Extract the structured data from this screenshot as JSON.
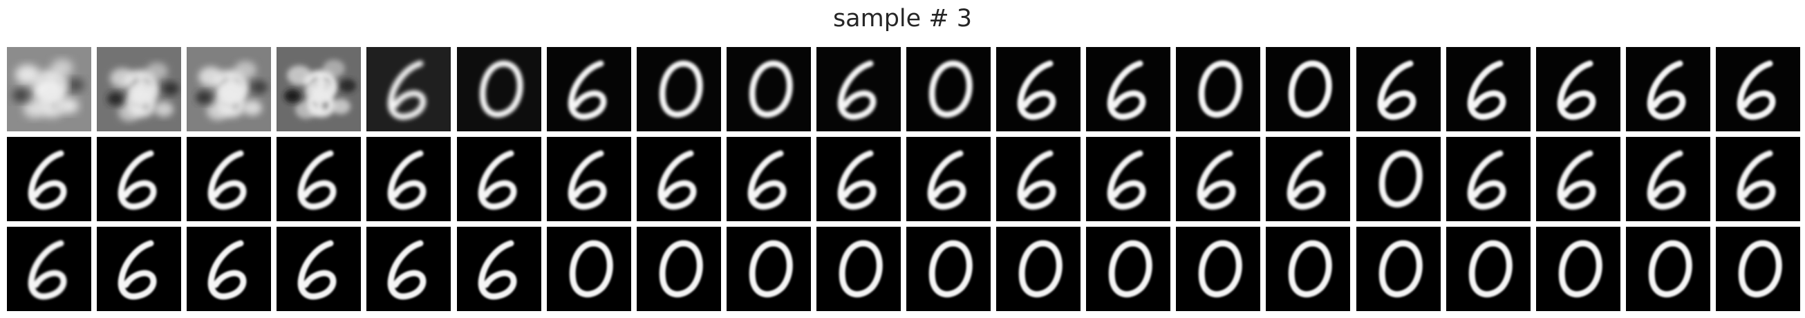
{
  "title": "sample # 3",
  "grid": {
    "rows": 3,
    "cols": 20,
    "rows_digits": [
      [
        "blob",
        "blob",
        "blob",
        "blob",
        "six",
        "zero",
        "six",
        "zero",
        "zero",
        "six",
        "zero",
        "six",
        "six",
        "zero",
        "zero",
        "six",
        "six",
        "six",
        "six",
        "six"
      ],
      [
        "six",
        "six",
        "six",
        "six",
        "six",
        "six",
        "six",
        "six",
        "six",
        "six",
        "six",
        "six",
        "six",
        "six",
        "six",
        "zero",
        "six",
        "six",
        "six",
        "six"
      ],
      [
        "six",
        "six",
        "six",
        "six",
        "six",
        "six",
        "zero",
        "zero",
        "zero",
        "zero",
        "zero",
        "zero",
        "zero",
        "zero",
        "zero",
        "zero",
        "zero",
        "zero",
        "zero",
        "zero"
      ]
    ],
    "row0_background_gray": [
      0.55,
      0.45,
      0.5,
      0.42,
      0.12,
      0.05,
      0.02,
      0.02,
      0.02,
      0.02,
      0.01,
      0.01,
      0.01,
      0.01,
      0.01,
      0.01,
      0.01,
      0.01,
      0.01,
      0.01
    ],
    "blur_levels": [
      [
        6,
        5,
        5,
        4,
        3.2,
        2.6,
        2.2,
        2.2,
        2.2,
        2.0,
        2.0,
        1.8,
        1.8,
        1.8,
        1.7,
        1.7,
        1.7,
        1.6,
        1.6,
        1.6
      ],
      [
        1.6,
        1.5,
        1.5,
        1.5,
        1.5,
        1.5,
        1.5,
        1.5,
        1.5,
        1.5,
        1.5,
        1.5,
        1.5,
        1.5,
        1.6,
        1.6,
        1.6,
        1.6,
        1.6,
        1.6
      ],
      [
        1.5,
        1.4,
        1.4,
        1.4,
        1.4,
        1.4,
        1.3,
        1.3,
        1.3,
        1.3,
        1.3,
        1.3,
        1.3,
        1.3,
        1.3,
        1.3,
        1.3,
        1.3,
        1.3,
        1.3
      ]
    ]
  }
}
